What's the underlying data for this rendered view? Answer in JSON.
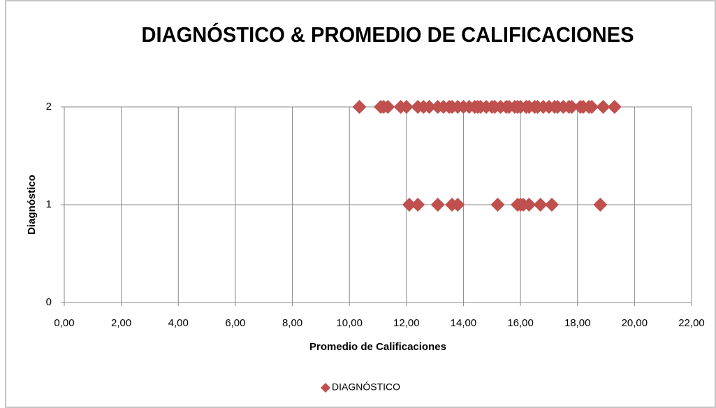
{
  "chart_data": {
    "type": "scatter",
    "title": "DIAGNÓSTICO & PROMEDIO DE CALIFICACIONES",
    "x_label": "Promedio de Calificaciones",
    "y_label": "Diagnóstico",
    "series": [
      {
        "name": "DIAGNÓSTICO",
        "color": "#c0504d",
        "x": [
          10.35,
          11.1,
          11.2,
          11.35,
          11.8,
          12.0,
          12.4,
          12.6,
          12.8,
          13.1,
          13.3,
          13.5,
          13.6,
          13.8,
          14.0,
          14.2,
          14.4,
          14.5,
          14.6,
          14.8,
          15.0,
          15.1,
          15.3,
          15.5,
          15.6,
          15.8,
          15.9,
          16.0,
          16.2,
          16.3,
          16.5,
          16.6,
          16.8,
          17.0,
          17.2,
          17.3,
          17.5,
          17.7,
          17.8,
          18.1,
          18.2,
          18.4,
          18.5,
          18.9,
          19.3,
          12.1,
          12.4,
          13.1,
          13.6,
          13.8,
          15.2,
          15.9,
          16.0,
          16.1,
          16.3,
          16.7,
          17.1,
          18.8
        ],
        "values": [
          2,
          2,
          2,
          2,
          2,
          2,
          2,
          2,
          2,
          2,
          2,
          2,
          2,
          2,
          2,
          2,
          2,
          2,
          2,
          2,
          2,
          2,
          2,
          2,
          2,
          2,
          2,
          2,
          2,
          2,
          2,
          2,
          2,
          2,
          2,
          2,
          2,
          2,
          2,
          2,
          2,
          2,
          2,
          2,
          2,
          1,
          1,
          1,
          1,
          1,
          1,
          1,
          1,
          1,
          1,
          1,
          1,
          1
        ]
      }
    ],
    "xlim": [
      0,
      22
    ],
    "xticks": [
      {
        "value": 0,
        "label": "0,00"
      },
      {
        "value": 2,
        "label": "2,00"
      },
      {
        "value": 4,
        "label": "4,00"
      },
      {
        "value": 6,
        "label": "6,00"
      },
      {
        "value": 8,
        "label": "8,00"
      },
      {
        "value": 10,
        "label": "10,00"
      },
      {
        "value": 12,
        "label": "12,00"
      },
      {
        "value": 14,
        "label": "14,00"
      },
      {
        "value": 16,
        "label": "16,00"
      },
      {
        "value": 18,
        "label": "18,00"
      },
      {
        "value": 20,
        "label": "20,00"
      },
      {
        "value": 22,
        "label": "22,00"
      }
    ],
    "ylim": [
      0,
      2
    ],
    "yticks": [
      0,
      1,
      2
    ],
    "grid": true,
    "legend": "bottom"
  }
}
